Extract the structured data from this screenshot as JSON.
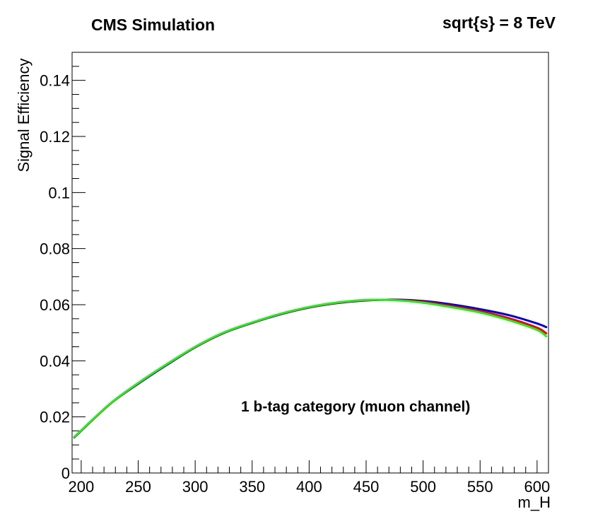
{
  "chart_data": {
    "type": "line",
    "title": "CMS Simulation",
    "subtitle": "sqrt{s} = 8 TeV",
    "annotation": "1 b-tag category (muon channel)",
    "xlabel": "m_H",
    "ylabel": "Signal Efficiency",
    "xlim": [
      192,
      610
    ],
    "ylim": [
      0,
      0.15
    ],
    "x_ticks": [
      200,
      250,
      300,
      350,
      400,
      450,
      500,
      550,
      600
    ],
    "y_ticks": [
      0,
      0.02,
      0.04,
      0.06,
      0.08,
      0.1,
      0.12,
      0.14
    ],
    "y_tick_labels": [
      "0",
      "0.02",
      "0.04",
      "0.06",
      "0.08",
      "0.1",
      "0.12",
      "0.14"
    ],
    "x_minor_step": 10,
    "y_minor_step": 0.005,
    "grid": false,
    "series": [
      {
        "name": "blue",
        "color": "#0000cc",
        "x": [
          194,
          225,
          250,
          275,
          300,
          325,
          350,
          375,
          400,
          425,
          450,
          475,
          500,
          525,
          550,
          575,
          600,
          608
        ],
        "y": [
          0.0127,
          0.0245,
          0.0318,
          0.0385,
          0.0448,
          0.0499,
          0.0535,
          0.0566,
          0.059,
          0.0606,
          0.0615,
          0.0618,
          0.0613,
          0.0601,
          0.0584,
          0.0563,
          0.0533,
          0.052
        ]
      },
      {
        "name": "red",
        "color": "#ee0000",
        "x": [
          194,
          225,
          250,
          275,
          300,
          325,
          350,
          375,
          400,
          425,
          450,
          475,
          500,
          525,
          550,
          575,
          600,
          608
        ],
        "y": [
          0.0128,
          0.0245,
          0.032,
          0.0387,
          0.0449,
          0.05,
          0.0536,
          0.0567,
          0.0591,
          0.0607,
          0.0616,
          0.0617,
          0.061,
          0.0595,
          0.0577,
          0.0552,
          0.0518,
          0.0498
        ]
      },
      {
        "name": "green",
        "color": "#22ee22",
        "x": [
          194,
          225,
          250,
          275,
          300,
          325,
          350,
          375,
          400,
          425,
          450,
          475,
          500,
          525,
          550,
          575,
          600,
          608
        ],
        "y": [
          0.0129,
          0.0246,
          0.0321,
          0.0388,
          0.045,
          0.0501,
          0.0537,
          0.0568,
          0.0592,
          0.0608,
          0.0617,
          0.0616,
          0.0607,
          0.0591,
          0.0572,
          0.0545,
          0.051,
          0.0487
        ]
      }
    ]
  }
}
